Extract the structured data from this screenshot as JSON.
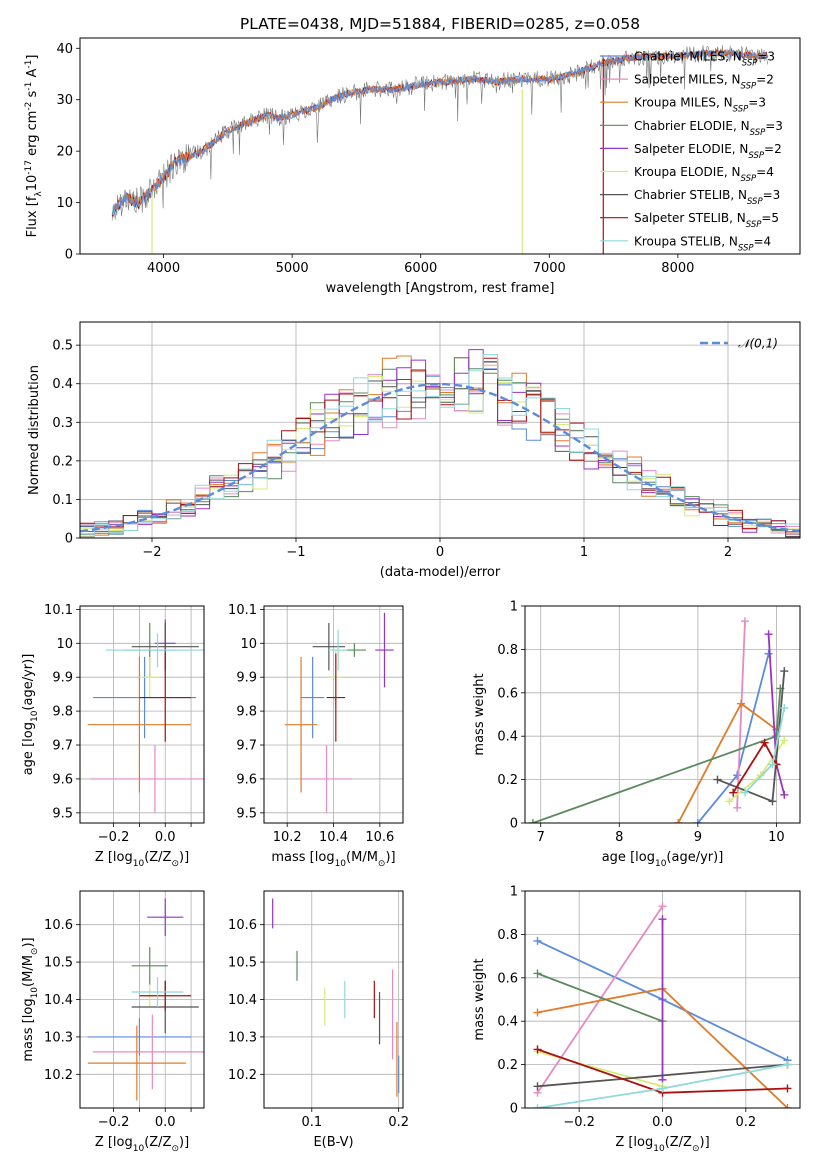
{
  "colors": {
    "Chabrier MILES": "#5b8bdc",
    "Salpeter MILES": "#e58ac4",
    "Kroupa MILES": "#e07b2a",
    "Chabrier ELODIE": "#5a8a5e",
    "Salpeter ELODIE": "#9a32c4",
    "Kroupa ELODIE": "#d8ea78",
    "Chabrier STELIB": "#555555",
    "Salpeter STELIB": "#aa1010",
    "Kroupa STELIB": "#8fd8dc",
    "normal_curve": "#5b8bdc",
    "data_spectrum": "#777777"
  },
  "chart_data": [
    {
      "id": "spectrum",
      "type": "line",
      "title": "PLATE=0438, MJD=51884, FIBERID=0285, z=0.058",
      "xlabel": "wavelength [Angstrom, rest frame]",
      "ylabel": "Flux [f$_\\lambda$10$^{-17}$ erg cm$^{-2}$ s$^{-1}$ A$^{-1}$]",
      "xlim": [
        3350,
        8950
      ],
      "ylim": [
        0,
        42
      ],
      "xticks": [
        4000,
        5000,
        6000,
        7000,
        8000
      ],
      "yticks": [
        0,
        10,
        20,
        30,
        40
      ],
      "grid": false,
      "legend_position": "top-right",
      "legend": [
        {
          "name": "Chabrier MILES",
          "label": "Chabrier MILES, N",
          "sub": "SSP",
          "suffix": "=3"
        },
        {
          "name": "Salpeter MILES",
          "label": "Salpeter MILES, N",
          "sub": "SSP",
          "suffix": "=2"
        },
        {
          "name": "Kroupa MILES",
          "label": "Kroupa MILES, N",
          "sub": "SSP",
          "suffix": "=3"
        },
        {
          "name": "Chabrier ELODIE",
          "label": "Chabrier ELODIE, N",
          "sub": "SSP",
          "suffix": "=3"
        },
        {
          "name": "Salpeter ELODIE",
          "label": "Salpeter ELODIE, N",
          "sub": "SSP",
          "suffix": "=2"
        },
        {
          "name": "Kroupa ELODIE",
          "label": "Kroupa ELODIE, N",
          "sub": "SSP",
          "suffix": "=4"
        },
        {
          "name": "Chabrier STELIB",
          "label": "Chabrier STELIB, N",
          "sub": "SSP",
          "suffix": "=3"
        },
        {
          "name": "Salpeter STELIB",
          "label": "Salpeter STELIB, N",
          "sub": "SSP",
          "suffix": "=5"
        },
        {
          "name": "Kroupa STELIB",
          "label": "Kroupa STELIB, N",
          "sub": "SSP",
          "suffix": "=4"
        }
      ],
      "continuum": {
        "x": [
          3600,
          3700,
          3800,
          3900,
          4000,
          4100,
          4200,
          4300,
          4400,
          4500,
          4600,
          4700,
          4800,
          4900,
          5000,
          5100,
          5200,
          5300,
          5400,
          5600,
          5800,
          6000,
          6200,
          6400,
          6600,
          6800,
          7000,
          7200,
          7400,
          7600,
          7800,
          8000,
          8200,
          8400,
          8600
        ],
        "y": [
          8,
          11,
          10,
          12,
          15,
          18,
          19,
          20,
          22,
          24,
          25,
          26,
          27,
          26.5,
          27,
          28,
          28.5,
          30,
          31,
          32,
          32,
          33,
          33.5,
          34,
          33.5,
          34,
          34,
          35,
          37,
          38,
          38.5,
          38.5,
          39,
          39,
          38.5
        ]
      },
      "spikes": [
        {
          "series": "Kroupa ELODIE",
          "x": 3910,
          "y_low": 0,
          "y_high": 12
        },
        {
          "series": "Kroupa ELODIE",
          "x": 6790,
          "y_low": 0,
          "y_high": 32
        },
        {
          "series": "Salpeter STELIB",
          "x": 7420,
          "y_low": 0,
          "y_high": 38
        }
      ]
    },
    {
      "id": "residuals",
      "type": "line",
      "xlabel": "(data-model)/error",
      "ylabel": "Normed distribution",
      "xlim": [
        -2.5,
        2.5
      ],
      "ylim": [
        0,
        0.56
      ],
      "xticks": [
        -2,
        -1,
        0,
        1,
        2
      ],
      "yticks": [
        0.0,
        0.1,
        0.2,
        0.3,
        0.4,
        0.5
      ],
      "grid": true,
      "legend_position": "top-right",
      "legend": [
        {
          "name": "normal_curve",
          "label": "$\\mathcal{N}(0,1)$"
        }
      ],
      "bin_width": 0.1,
      "series": [
        "Chabrier MILES",
        "Salpeter MILES",
        "Kroupa MILES",
        "Chabrier ELODIE",
        "Salpeter ELODIE",
        "Kroupa ELODIE",
        "Chabrier STELIB",
        "Salpeter STELIB",
        "Kroupa STELIB"
      ]
    },
    {
      "id": "age-vs-Z",
      "type": "scatter",
      "xlabel": "Z [log$_{10}$(Z/Z$_\\odot$)]",
      "ylabel": "age  [log$_{10}$(age/yr)]",
      "xlim": [
        -0.33,
        0.15
      ],
      "ylim": [
        9.47,
        10.11
      ],
      "xticks": [
        -0.2,
        -0.1,
        0.0,
        0.1
      ],
      "xticklabels": [
        "−0.2",
        "",
        "0.0",
        ""
      ],
      "yticks": [
        9.5,
        9.6,
        9.7,
        9.8,
        9.9,
        10.0,
        10.1
      ],
      "grid": true,
      "points": [
        {
          "series": "Chabrier MILES",
          "x": -0.08,
          "xerr": 0.2,
          "y": 9.84,
          "yerr": 0.12
        },
        {
          "series": "Salpeter MILES",
          "x": -0.04,
          "xerr": 0.25,
          "y": 9.6,
          "yerr": 0.1
        },
        {
          "series": "Kroupa MILES",
          "x": -0.1,
          "xerr": 0.2,
          "y": 9.76,
          "yerr": 0.2
        },
        {
          "series": "Chabrier ELODIE",
          "x": -0.06,
          "xerr": 0.1,
          "y": 9.98,
          "yerr": 0.08
        },
        {
          "series": "Salpeter ELODIE",
          "x": 0.0,
          "xerr": 0.04,
          "y": 10.0,
          "yerr": 0.07
        },
        {
          "series": "Kroupa ELODIE",
          "x": -0.06,
          "xerr": 0.04,
          "y": 9.9,
          "yerr": 0.06
        },
        {
          "series": "Chabrier STELIB",
          "x": 0.0,
          "xerr": 0.13,
          "y": 9.99,
          "yerr": 0.07
        },
        {
          "series": "Salpeter STELIB",
          "x": -0.0,
          "xerr": 0.1,
          "y": 9.84,
          "yerr": 0.13
        },
        {
          "series": "Kroupa STELIB",
          "x": -0.03,
          "xerr": 0.2,
          "y": 9.98,
          "yerr": 0.05
        }
      ]
    },
    {
      "id": "age-vs-mass",
      "type": "scatter",
      "xlabel": "mass [log$_{10}$(M/M$_\\odot$)]",
      "ylabel": "",
      "xlim": [
        10.1,
        10.7
      ],
      "ylim": [
        9.47,
        10.11
      ],
      "xticks": [
        10.2,
        10.4,
        10.6
      ],
      "yticks": [
        9.5,
        9.6,
        9.7,
        9.8,
        9.9,
        10.0,
        10.1
      ],
      "grid": true,
      "points": [
        {
          "series": "Chabrier MILES",
          "x": 10.31,
          "xerr": 0.05,
          "y": 9.84,
          "yerr": 0.12
        },
        {
          "series": "Salpeter MILES",
          "x": 10.37,
          "xerr": 0.11,
          "y": 9.6,
          "yerr": 0.1
        },
        {
          "series": "Kroupa MILES",
          "x": 10.26,
          "xerr": 0.07,
          "y": 9.76,
          "yerr": 0.2
        },
        {
          "series": "Chabrier ELODIE",
          "x": 10.49,
          "xerr": 0.05,
          "y": 9.98,
          "yerr": 0.02
        },
        {
          "series": "Salpeter ELODIE",
          "x": 10.62,
          "xerr": 0.04,
          "y": 9.98,
          "yerr": 0.11
        },
        {
          "series": "Kroupa ELODIE",
          "x": 10.41,
          "xerr": 0.03,
          "y": 9.9,
          "yerr": 0.08
        },
        {
          "series": "Chabrier STELIB",
          "x": 10.38,
          "xerr": 0.07,
          "y": 9.99,
          "yerr": 0.07
        },
        {
          "series": "Salpeter STELIB",
          "x": 10.41,
          "xerr": 0.04,
          "y": 9.84,
          "yerr": 0.13
        },
        {
          "series": "Kroupa STELIB",
          "x": 10.42,
          "xerr": 0.04,
          "y": 9.98,
          "yerr": 0.06
        }
      ]
    },
    {
      "id": "mass-weight-vs-age",
      "type": "line",
      "xlabel": "age  [log$_{10}$(age/yr)]",
      "ylabel": "mass weight",
      "xlim": [
        6.8,
        10.3
      ],
      "ylim": [
        0,
        1.0
      ],
      "xticks": [
        7,
        8,
        9,
        10
      ],
      "yticks": [
        0.0,
        0.2,
        0.4,
        0.6,
        0.8,
        1.0
      ],
      "grid": true,
      "series": [
        {
          "name": "Chabrier MILES",
          "x": [
            9.0,
            9.5,
            9.9
          ],
          "y": [
            0.0,
            0.22,
            0.78
          ]
        },
        {
          "name": "Salpeter MILES",
          "x": [
            9.5,
            9.6
          ],
          "y": [
            0.07,
            0.93
          ]
        },
        {
          "name": "Kroupa MILES",
          "x": [
            8.75,
            9.55,
            10.0
          ],
          "y": [
            0.0,
            0.55,
            0.43
          ]
        },
        {
          "name": "Chabrier ELODIE",
          "x": [
            6.9,
            10.0,
            10.05
          ],
          "y": [
            0.0,
            0.4,
            0.62
          ]
        },
        {
          "name": "Salpeter ELODIE",
          "x": [
            9.9,
            10.0,
            10.1
          ],
          "y": [
            0.87,
            0.27,
            0.13
          ]
        },
        {
          "name": "Kroupa ELODIE",
          "x": [
            9.4,
            9.8,
            10.1
          ],
          "y": [
            0.1,
            0.22,
            0.38
          ]
        },
        {
          "name": "Chabrier STELIB",
          "x": [
            9.25,
            9.95,
            10.1
          ],
          "y": [
            0.2,
            0.1,
            0.7
          ]
        },
        {
          "name": "Salpeter STELIB",
          "x": [
            9.45,
            9.85,
            10.0
          ],
          "y": [
            0.14,
            0.37,
            0.27
          ]
        },
        {
          "name": "Kroupa STELIB",
          "x": [
            9.6,
            9.95,
            10.1
          ],
          "y": [
            0.14,
            0.27,
            0.53
          ]
        }
      ]
    },
    {
      "id": "mass-vs-Z",
      "type": "scatter",
      "xlabel": "Z [log$_{10}$(Z/Z$_\\odot$)]",
      "ylabel": "mass [log$_{10}$(M/M$_\\odot$)]",
      "xlim": [
        -0.33,
        0.15
      ],
      "ylim": [
        10.11,
        10.69
      ],
      "xticks": [
        -0.2,
        -0.1,
        0.0,
        0.1
      ],
      "xticklabels": [
        "−0.2",
        "",
        "0.0",
        ""
      ],
      "yticks": [
        10.2,
        10.3,
        10.4,
        10.5,
        10.6
      ],
      "grid": true,
      "points": [
        {
          "series": "Chabrier MILES",
          "x": -0.1,
          "xerr": 0.2,
          "y": 10.3,
          "yerr": 0.05
        },
        {
          "series": "Salpeter MILES",
          "x": -0.05,
          "xerr": 0.23,
          "y": 10.26,
          "yerr": 0.1
        },
        {
          "series": "Kroupa MILES",
          "x": -0.11,
          "xerr": 0.19,
          "y": 10.23,
          "yerr": 0.1
        },
        {
          "series": "Chabrier ELODIE",
          "x": -0.06,
          "xerr": 0.07,
          "y": 10.49,
          "yerr": 0.05
        },
        {
          "series": "Salpeter ELODIE",
          "x": 0.0,
          "xerr": 0.07,
          "y": 10.62,
          "yerr": 0.05
        },
        {
          "series": "Kroupa ELODIE",
          "x": -0.06,
          "xerr": 0.04,
          "y": 10.41,
          "yerr": 0.03
        },
        {
          "series": "Chabrier STELIB",
          "x": 0.0,
          "xerr": 0.13,
          "y": 10.38,
          "yerr": 0.07
        },
        {
          "series": "Salpeter STELIB",
          "x": -0.0,
          "xerr": 0.1,
          "y": 10.41,
          "yerr": 0.04
        },
        {
          "series": "Kroupa STELIB",
          "x": -0.03,
          "xerr": 0.1,
          "y": 10.42,
          "yerr": 0.04
        }
      ]
    },
    {
      "id": "mass-vs-ebv",
      "type": "scatter",
      "xlabel": "E(B-V)",
      "ylabel": "",
      "xlim": [
        0.045,
        0.205
      ],
      "ylim": [
        10.11,
        10.69
      ],
      "xticks": [
        0.1,
        0.2
      ],
      "yticks": [
        10.2,
        10.3,
        10.4,
        10.5,
        10.6
      ],
      "grid": true,
      "points": [
        {
          "series": "Salpeter ELODIE",
          "x": 0.055,
          "xerr": 0,
          "y": 10.63,
          "yerr": 0.04
        },
        {
          "series": "Chabrier ELODIE",
          "x": 0.083,
          "xerr": 0,
          "y": 10.49,
          "yerr": 0.04
        },
        {
          "series": "Kroupa ELODIE",
          "x": 0.115,
          "xerr": 0,
          "y": 10.38,
          "yerr": 0.05
        },
        {
          "series": "Kroupa STELIB",
          "x": 0.138,
          "xerr": 0,
          "y": 10.4,
          "yerr": 0.05
        },
        {
          "series": "Salpeter STELIB",
          "x": 0.172,
          "xerr": 0,
          "y": 10.4,
          "yerr": 0.05
        },
        {
          "series": "Chabrier STELIB",
          "x": 0.178,
          "xerr": 0,
          "y": 10.35,
          "yerr": 0.07
        },
        {
          "series": "Salpeter MILES",
          "x": 0.193,
          "xerr": 0,
          "y": 10.36,
          "yerr": 0.12
        },
        {
          "series": "Kroupa MILES",
          "x": 0.198,
          "xerr": 0,
          "y": 10.24,
          "yerr": 0.1
        },
        {
          "series": "Chabrier MILES",
          "x": 0.2,
          "xerr": 0,
          "y": 10.2,
          "yerr": 0.05
        }
      ]
    },
    {
      "id": "mass-weight-vs-Z",
      "type": "line",
      "xlabel": "Z [log$_{10}$(Z/Z$_\\odot$)]",
      "ylabel": "mass weight",
      "xlim": [
        -0.33,
        0.33
      ],
      "ylim": [
        0,
        1.0
      ],
      "xticks": [
        -0.2,
        0.0,
        0.2
      ],
      "xticklabels": [
        "−0.2",
        "0.0",
        "0.2"
      ],
      "yticks": [
        0.0,
        0.2,
        0.4,
        0.6,
        0.8,
        1.0
      ],
      "grid": true,
      "series": [
        {
          "name": "Chabrier MILES",
          "x": [
            -0.3,
            0.0,
            0.3
          ],
          "y": [
            0.77,
            0.5,
            0.22
          ]
        },
        {
          "name": "Salpeter MILES",
          "x": [
            -0.3,
            0.0
          ],
          "y": [
            0.07,
            0.93
          ]
        },
        {
          "name": "Kroupa MILES",
          "x": [
            -0.3,
            0.0,
            0.3
          ],
          "y": [
            0.44,
            0.55,
            0.0
          ]
        },
        {
          "name": "Chabrier ELODIE",
          "x": [
            -0.3,
            0.0
          ],
          "y": [
            0.62,
            0.4
          ]
        },
        {
          "name": "Salpeter ELODIE",
          "x": [
            0.0,
            0.0
          ],
          "y": [
            0.87,
            0.13
          ]
        },
        {
          "name": "Kroupa ELODIE",
          "x": [
            -0.3,
            0.0
          ],
          "y": [
            0.26,
            0.1
          ]
        },
        {
          "name": "Chabrier STELIB",
          "x": [
            -0.3,
            0.3
          ],
          "y": [
            0.1,
            0.2
          ]
        },
        {
          "name": "Salpeter STELIB",
          "x": [
            -0.3,
            0.0,
            0.3
          ],
          "y": [
            0.27,
            0.07,
            0.09
          ]
        },
        {
          "name": "Kroupa STELIB",
          "x": [
            -0.3,
            0.0,
            0.3
          ],
          "y": [
            0.0,
            0.09,
            0.2
          ]
        }
      ]
    }
  ]
}
